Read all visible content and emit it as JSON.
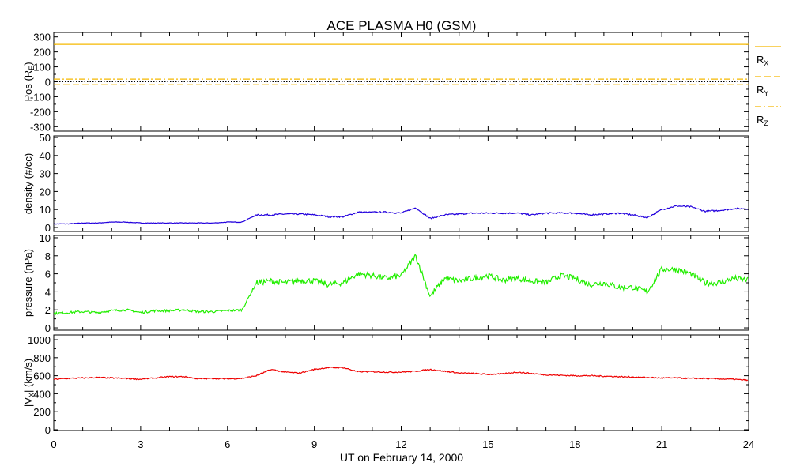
{
  "title": "ACE PLASMA H0 (GSM)",
  "xlabel": "UT on February 14, 2000",
  "colors": {
    "pos": "#f5b800",
    "density": "#2200dd",
    "pressure": "#22ee00",
    "vx": "#ee0000",
    "axis": "#000000"
  },
  "chart_data": [
    {
      "type": "line",
      "id": "pos",
      "ylabel": "Pos (R",
      "ylabel_sub": "E",
      "ylabel_end": ")",
      "ylim": [
        -330,
        330
      ],
      "yticks": [
        300,
        200,
        100,
        0,
        -100,
        -200,
        -300
      ],
      "ytick_labels": [
        "300",
        "200",
        "100",
        "0",
        "-100",
        "-200",
        "-300"
      ],
      "series": [
        {
          "name": "R",
          "sub": "X",
          "style": "solid",
          "value": 250
        },
        {
          "name": "R",
          "sub": "Y",
          "style": "dashed",
          "value": -20
        },
        {
          "name": "R",
          "sub": "Z",
          "style": "dashdot",
          "value": 18
        }
      ],
      "zero_line": 0
    },
    {
      "type": "line",
      "id": "density",
      "ylabel": "density (#/cc)",
      "ylim": [
        -2.2,
        50.9
      ],
      "yticks": [
        50,
        40,
        30,
        20,
        10,
        0
      ],
      "ytick_labels": [
        "50",
        "40",
        "30",
        "20",
        "10",
        "0"
      ],
      "x_step_hours": 0.5,
      "values": [
        2,
        2,
        2.5,
        2.5,
        3,
        3,
        2.5,
        2.5,
        2.5,
        2.5,
        2.5,
        2.5,
        3,
        3,
        7,
        7,
        7.5,
        7.5,
        7,
        6,
        6,
        8.5,
        8.5,
        8.5,
        8,
        11,
        5,
        7,
        7.5,
        8,
        8,
        8,
        8,
        7,
        8,
        8,
        8,
        7,
        7.5,
        8,
        7,
        5.5,
        10,
        12,
        11.5,
        9,
        9.5,
        10.5,
        10.5
      ]
    },
    {
      "type": "line",
      "id": "pressure",
      "ylabel": "pressure (nPa)",
      "ylim": [
        -0.26,
        10.26
      ],
      "yticks": [
        10,
        8,
        6,
        4,
        2,
        0
      ],
      "ytick_labels": [
        "10",
        "8",
        "6",
        "4",
        "2",
        "0"
      ],
      "x_step_hours": 0.5,
      "values": [
        1.6,
        1.7,
        1.8,
        1.7,
        1.9,
        2.0,
        1.7,
        1.9,
        1.9,
        2.0,
        1.8,
        1.8,
        1.9,
        2.0,
        5,
        5.2,
        5,
        5.3,
        5.2,
        4.8,
        5.0,
        6.0,
        5.8,
        5.5,
        5.8,
        8.0,
        3.5,
        5.5,
        5.2,
        5.5,
        5.8,
        5.3,
        5.5,
        5.2,
        5.0,
        5.8,
        5.5,
        4.8,
        5.0,
        4.5,
        4.5,
        4.0,
        6.5,
        6.5,
        6.0,
        5.0,
        5.0,
        5.5,
        5.3
      ]
    },
    {
      "type": "line",
      "id": "vx",
      "ylabel": "|V",
      "ylabel_sub": "X",
      "ylabel_end": "| (km/s)",
      "ylim": [
        -9,
        1053
      ],
      "yticks": [
        1000,
        800,
        600,
        400,
        200,
        0
      ],
      "ytick_labels": [
        "1000",
        "800",
        "600",
        "400",
        "200",
        "0"
      ],
      "x_step_hours": 0.5,
      "values": [
        560,
        570,
        575,
        580,
        575,
        570,
        560,
        575,
        590,
        590,
        565,
        570,
        565,
        570,
        600,
        670,
        640,
        630,
        670,
        690,
        690,
        645,
        645,
        640,
        640,
        650,
        670,
        650,
        630,
        625,
        615,
        620,
        640,
        625,
        610,
        605,
        600,
        600,
        595,
        590,
        585,
        580,
        575,
        575,
        570,
        570,
        565,
        560,
        548
      ]
    }
  ],
  "xaxis": {
    "xlim": [
      0,
      24
    ],
    "ticks": [
      0,
      3,
      6,
      9,
      12,
      15,
      18,
      21,
      24
    ],
    "tick_labels": [
      "0",
      "3",
      "6",
      "9",
      "12",
      "15",
      "18",
      "21",
      "24"
    ]
  }
}
